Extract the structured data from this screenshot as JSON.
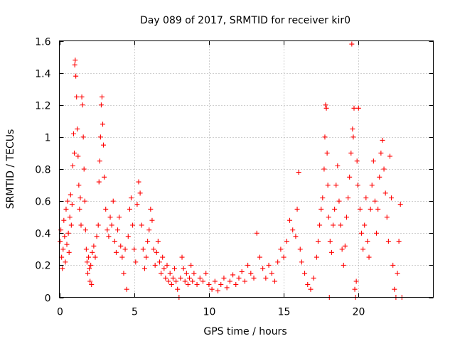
{
  "chart_data": {
    "type": "scatter",
    "title": "Day 089 of 2017, SRMTID for receiver kir0",
    "xlabel": "GPS time / hours",
    "ylabel": "SRMTID / TECUs",
    "xlim": [
      0,
      25
    ],
    "ylim": [
      0,
      1.6
    ],
    "xticks": [
      0,
      5,
      10,
      15,
      20
    ],
    "xtick_labels": [
      "0",
      "5",
      "10",
      "15",
      "20"
    ],
    "yticks": [
      0,
      0.2,
      0.4,
      0.6,
      0.8,
      1,
      1.2,
      1.4,
      1.6
    ],
    "ytick_labels": [
      "0",
      "0.2",
      "0.4",
      "0.6",
      "0.8",
      "1",
      "1.2",
      "1.4",
      "1.6"
    ],
    "grid": true,
    "marker": "+",
    "color": "#ff0000",
    "series": [
      {
        "name": "SRMTID",
        "points": [
          [
            0.05,
            0.35
          ],
          [
            0.1,
            0.42
          ],
          [
            0.15,
            0.25
          ],
          [
            0.2,
            0.18
          ],
          [
            0.25,
            0.3
          ],
          [
            0.3,
            0.48
          ],
          [
            0.35,
            0.38
          ],
          [
            0.4,
            0.22
          ],
          [
            0.45,
            0.55
          ],
          [
            0.5,
            0.33
          ],
          [
            0.55,
            0.6
          ],
          [
            0.6,
            0.4
          ],
          [
            0.65,
            0.28
          ],
          [
            0.7,
            0.5
          ],
          [
            0.75,
            0.64
          ],
          [
            0.8,
            0.45
          ],
          [
            0.85,
            0.58
          ],
          [
            0.9,
            0.82
          ],
          [
            0.95,
            1.02
          ],
          [
            1.0,
            0.9
          ],
          [
            1.03,
            1.45
          ],
          [
            1.06,
            1.48
          ],
          [
            1.1,
            1.38
          ],
          [
            1.15,
            1.25
          ],
          [
            1.2,
            1.05
          ],
          [
            1.25,
            0.88
          ],
          [
            1.3,
            0.7
          ],
          [
            1.35,
            0.55
          ],
          [
            1.4,
            0.62
          ],
          [
            1.45,
            0.45
          ],
          [
            1.5,
            1.25
          ],
          [
            1.55,
            1.2
          ],
          [
            1.6,
            1.0
          ],
          [
            1.65,
            0.8
          ],
          [
            1.7,
            0.6
          ],
          [
            1.75,
            0.42
          ],
          [
            1.8,
            0.3
          ],
          [
            1.85,
            0.22
          ],
          [
            1.9,
            0.15
          ],
          [
            1.95,
            0.25
          ],
          [
            2.0,
            0.18
          ],
          [
            2.05,
            0.1
          ],
          [
            2.1,
            0.2
          ],
          [
            2.15,
            0.08
          ],
          [
            2.2,
            0.28
          ],
          [
            2.3,
            0.32
          ],
          [
            2.4,
            0.25
          ],
          [
            2.5,
            0.38
          ],
          [
            2.6,
            0.45
          ],
          [
            2.65,
            0.72
          ],
          [
            2.7,
            0.85
          ],
          [
            2.75,
            1.0
          ],
          [
            2.8,
            1.2
          ],
          [
            2.85,
            1.25
          ],
          [
            2.9,
            1.08
          ],
          [
            2.95,
            0.95
          ],
          [
            3.0,
            0.75
          ],
          [
            3.1,
            0.55
          ],
          [
            3.2,
            0.42
          ],
          [
            3.3,
            0.38
          ],
          [
            3.4,
            0.5
          ],
          [
            3.5,
            0.45
          ],
          [
            3.6,
            0.6
          ],
          [
            3.7,
            0.35
          ],
          [
            3.8,
            0.28
          ],
          [
            3.9,
            0.42
          ],
          [
            4.0,
            0.5
          ],
          [
            4.1,
            0.32
          ],
          [
            4.2,
            0.25
          ],
          [
            4.3,
            0.15
          ],
          [
            4.4,
            0.3
          ],
          [
            4.5,
            0.05
          ],
          [
            4.6,
            0.38
          ],
          [
            4.7,
            0.55
          ],
          [
            4.8,
            0.62
          ],
          [
            4.9,
            0.45
          ],
          [
            5.0,
            0.3
          ],
          [
            5.1,
            0.22
          ],
          [
            5.2,
            0.58
          ],
          [
            5.3,
            0.72
          ],
          [
            5.4,
            0.65
          ],
          [
            5.5,
            0.45
          ],
          [
            5.6,
            0.3
          ],
          [
            5.7,
            0.18
          ],
          [
            5.8,
            0.25
          ],
          [
            5.9,
            0.35
          ],
          [
            6.0,
            0.42
          ],
          [
            6.1,
            0.55
          ],
          [
            6.2,
            0.48
          ],
          [
            6.3,
            0.3
          ],
          [
            6.4,
            0.2
          ],
          [
            6.5,
            0.28
          ],
          [
            6.6,
            0.35
          ],
          [
            6.7,
            0.22
          ],
          [
            6.8,
            0.15
          ],
          [
            6.9,
            0.25
          ],
          [
            7.0,
            0.18
          ],
          [
            7.1,
            0.12
          ],
          [
            7.2,
            0.2
          ],
          [
            7.3,
            0.1
          ],
          [
            7.4,
            0.15
          ],
          [
            7.5,
            0.08
          ],
          [
            7.6,
            0.12
          ],
          [
            7.7,
            0.18
          ],
          [
            7.8,
            0.1
          ],
          [
            7.9,
            0.05
          ],
          [
            8.0,
            0.0
          ],
          [
            8.1,
            0.12
          ],
          [
            8.2,
            0.25
          ],
          [
            8.3,
            0.18
          ],
          [
            8.4,
            0.1
          ],
          [
            8.5,
            0.15
          ],
          [
            8.6,
            0.08
          ],
          [
            8.7,
            0.12
          ],
          [
            8.8,
            0.2
          ],
          [
            8.9,
            0.1
          ],
          [
            9.0,
            0.15
          ],
          [
            9.2,
            0.08
          ],
          [
            9.4,
            0.12
          ],
          [
            9.6,
            0.1
          ],
          [
            9.8,
            0.15
          ],
          [
            10.0,
            0.08
          ],
          [
            10.2,
            0.05
          ],
          [
            10.4,
            0.1
          ],
          [
            10.6,
            0.04
          ],
          [
            10.8,
            0.08
          ],
          [
            11.0,
            0.12
          ],
          [
            11.2,
            0.06
          ],
          [
            11.4,
            0.1
          ],
          [
            11.6,
            0.14
          ],
          [
            11.8,
            0.08
          ],
          [
            12.0,
            0.12
          ],
          [
            12.2,
            0.16
          ],
          [
            12.4,
            0.1
          ],
          [
            12.6,
            0.2
          ],
          [
            12.8,
            0.15
          ],
          [
            13.0,
            0.12
          ],
          [
            13.2,
            0.4
          ],
          [
            13.4,
            0.25
          ],
          [
            13.6,
            0.18
          ],
          [
            13.8,
            0.12
          ],
          [
            14.0,
            0.2
          ],
          [
            14.2,
            0.15
          ],
          [
            14.4,
            0.1
          ],
          [
            14.6,
            0.22
          ],
          [
            14.8,
            0.3
          ],
          [
            15.0,
            0.25
          ],
          [
            15.2,
            0.35
          ],
          [
            15.4,
            0.48
          ],
          [
            15.6,
            0.42
          ],
          [
            15.8,
            0.38
          ],
          [
            15.9,
            0.55
          ],
          [
            16.0,
            0.78
          ],
          [
            16.1,
            0.3
          ],
          [
            16.2,
            0.22
          ],
          [
            16.4,
            0.15
          ],
          [
            16.6,
            0.08
          ],
          [
            16.8,
            0.05
          ],
          [
            17.0,
            0.12
          ],
          [
            17.2,
            0.25
          ],
          [
            17.3,
            0.35
          ],
          [
            17.4,
            0.45
          ],
          [
            17.5,
            0.55
          ],
          [
            17.6,
            0.62
          ],
          [
            17.7,
            0.8
          ],
          [
            17.75,
            1.0
          ],
          [
            17.8,
            1.2
          ],
          [
            17.85,
            1.18
          ],
          [
            17.9,
            0.9
          ],
          [
            17.95,
            0.7
          ],
          [
            18.0,
            0.5
          ],
          [
            18.05,
            0.0
          ],
          [
            18.1,
            0.35
          ],
          [
            18.2,
            0.28
          ],
          [
            18.3,
            0.45
          ],
          [
            18.4,
            0.55
          ],
          [
            18.5,
            0.7
          ],
          [
            18.6,
            0.82
          ],
          [
            18.7,
            0.6
          ],
          [
            18.8,
            0.45
          ],
          [
            18.9,
            0.3
          ],
          [
            19.0,
            0.2
          ],
          [
            19.1,
            0.32
          ],
          [
            19.2,
            0.5
          ],
          [
            19.3,
            0.62
          ],
          [
            19.4,
            0.75
          ],
          [
            19.5,
            0.9
          ],
          [
            19.55,
            1.58
          ],
          [
            19.6,
            1.05
          ],
          [
            19.65,
            1.0
          ],
          [
            19.7,
            1.18
          ],
          [
            19.75,
            0.05
          ],
          [
            19.8,
            0.0
          ],
          [
            19.85,
            0.1
          ],
          [
            19.9,
            0.85
          ],
          [
            19.95,
            0.7
          ],
          [
            20.0,
            1.18
          ],
          [
            20.1,
            0.55
          ],
          [
            20.2,
            0.4
          ],
          [
            20.3,
            0.3
          ],
          [
            20.4,
            0.45
          ],
          [
            20.5,
            0.62
          ],
          [
            20.6,
            0.35
          ],
          [
            20.7,
            0.25
          ],
          [
            20.8,
            0.55
          ],
          [
            20.9,
            0.7
          ],
          [
            21.0,
            0.85
          ],
          [
            21.1,
            0.6
          ],
          [
            21.2,
            0.4
          ],
          [
            21.3,
            0.55
          ],
          [
            21.4,
            0.75
          ],
          [
            21.5,
            0.9
          ],
          [
            21.6,
            0.98
          ],
          [
            21.7,
            0.8
          ],
          [
            21.8,
            0.65
          ],
          [
            21.9,
            0.5
          ],
          [
            22.0,
            0.35
          ],
          [
            22.1,
            0.88
          ],
          [
            22.2,
            0.62
          ],
          [
            22.3,
            0.2
          ],
          [
            22.4,
            0.05
          ],
          [
            22.5,
            0.0
          ],
          [
            22.6,
            0.15
          ],
          [
            22.7,
            0.35
          ],
          [
            22.8,
            0.58
          ],
          [
            22.9,
            0.0
          ]
        ]
      }
    ]
  }
}
